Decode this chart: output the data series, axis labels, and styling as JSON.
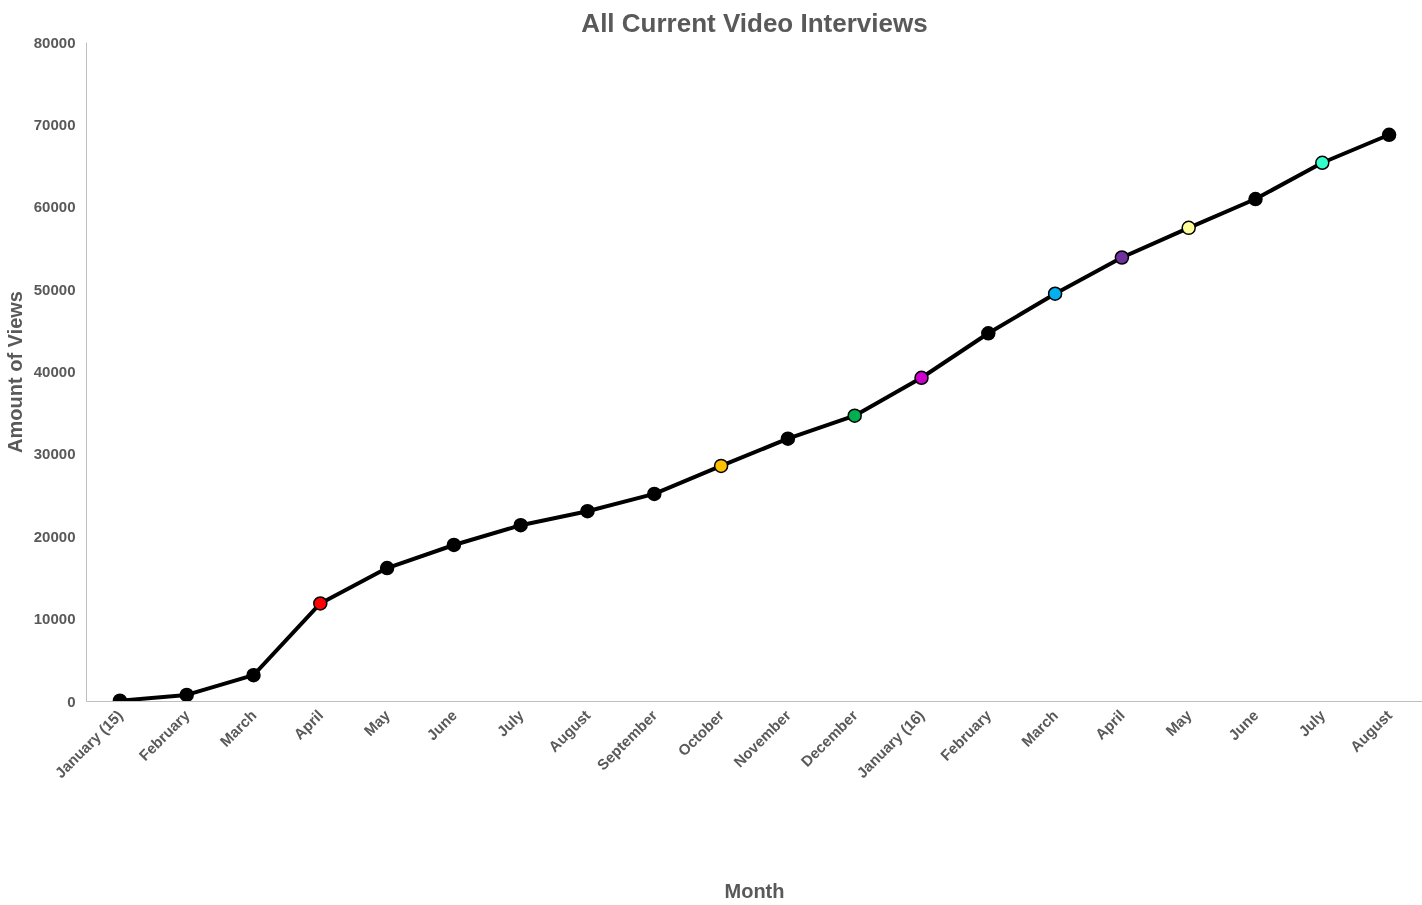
{
  "chart_data": {
    "type": "line",
    "title": "All Current Video Interviews",
    "xlabel": "Month",
    "ylabel": "Amount of Views",
    "categories": [
      "January (15)",
      "February",
      "March",
      "April",
      "May",
      "June",
      "July",
      "August",
      "September",
      "October",
      "November",
      "December",
      "January (16)",
      "February",
      "March",
      "April",
      "May",
      "June",
      "July",
      "August"
    ],
    "series": [
      {
        "color": "#000000",
        "values": [
          100,
          800,
          3200,
          11900,
          16200,
          19000,
          21400,
          23100,
          25200,
          28600,
          31900,
          34700,
          39300,
          44700,
          49500,
          53900,
          57500,
          61000,
          65400,
          68800
        ],
        "colors": [
          "#000000",
          "#000000",
          "#000000",
          "#ff0000",
          "#000000",
          "#000000",
          "#000000",
          "#000000",
          "#000000",
          "#ffc000",
          "#000000",
          "#00b050",
          "#cc00cc",
          "#000000",
          "#00b0f0",
          "#7030a0",
          "#ffff99",
          "#000000",
          "#33ffcc",
          "#000000"
        ]
      }
    ],
    "ylim": [
      0,
      80000
    ],
    "yticks": [
      0,
      10000,
      20000,
      30000,
      40000,
      50000,
      60000,
      70000,
      80000
    ],
    "grid": false,
    "marker": "circle",
    "line_style": "solid"
  }
}
